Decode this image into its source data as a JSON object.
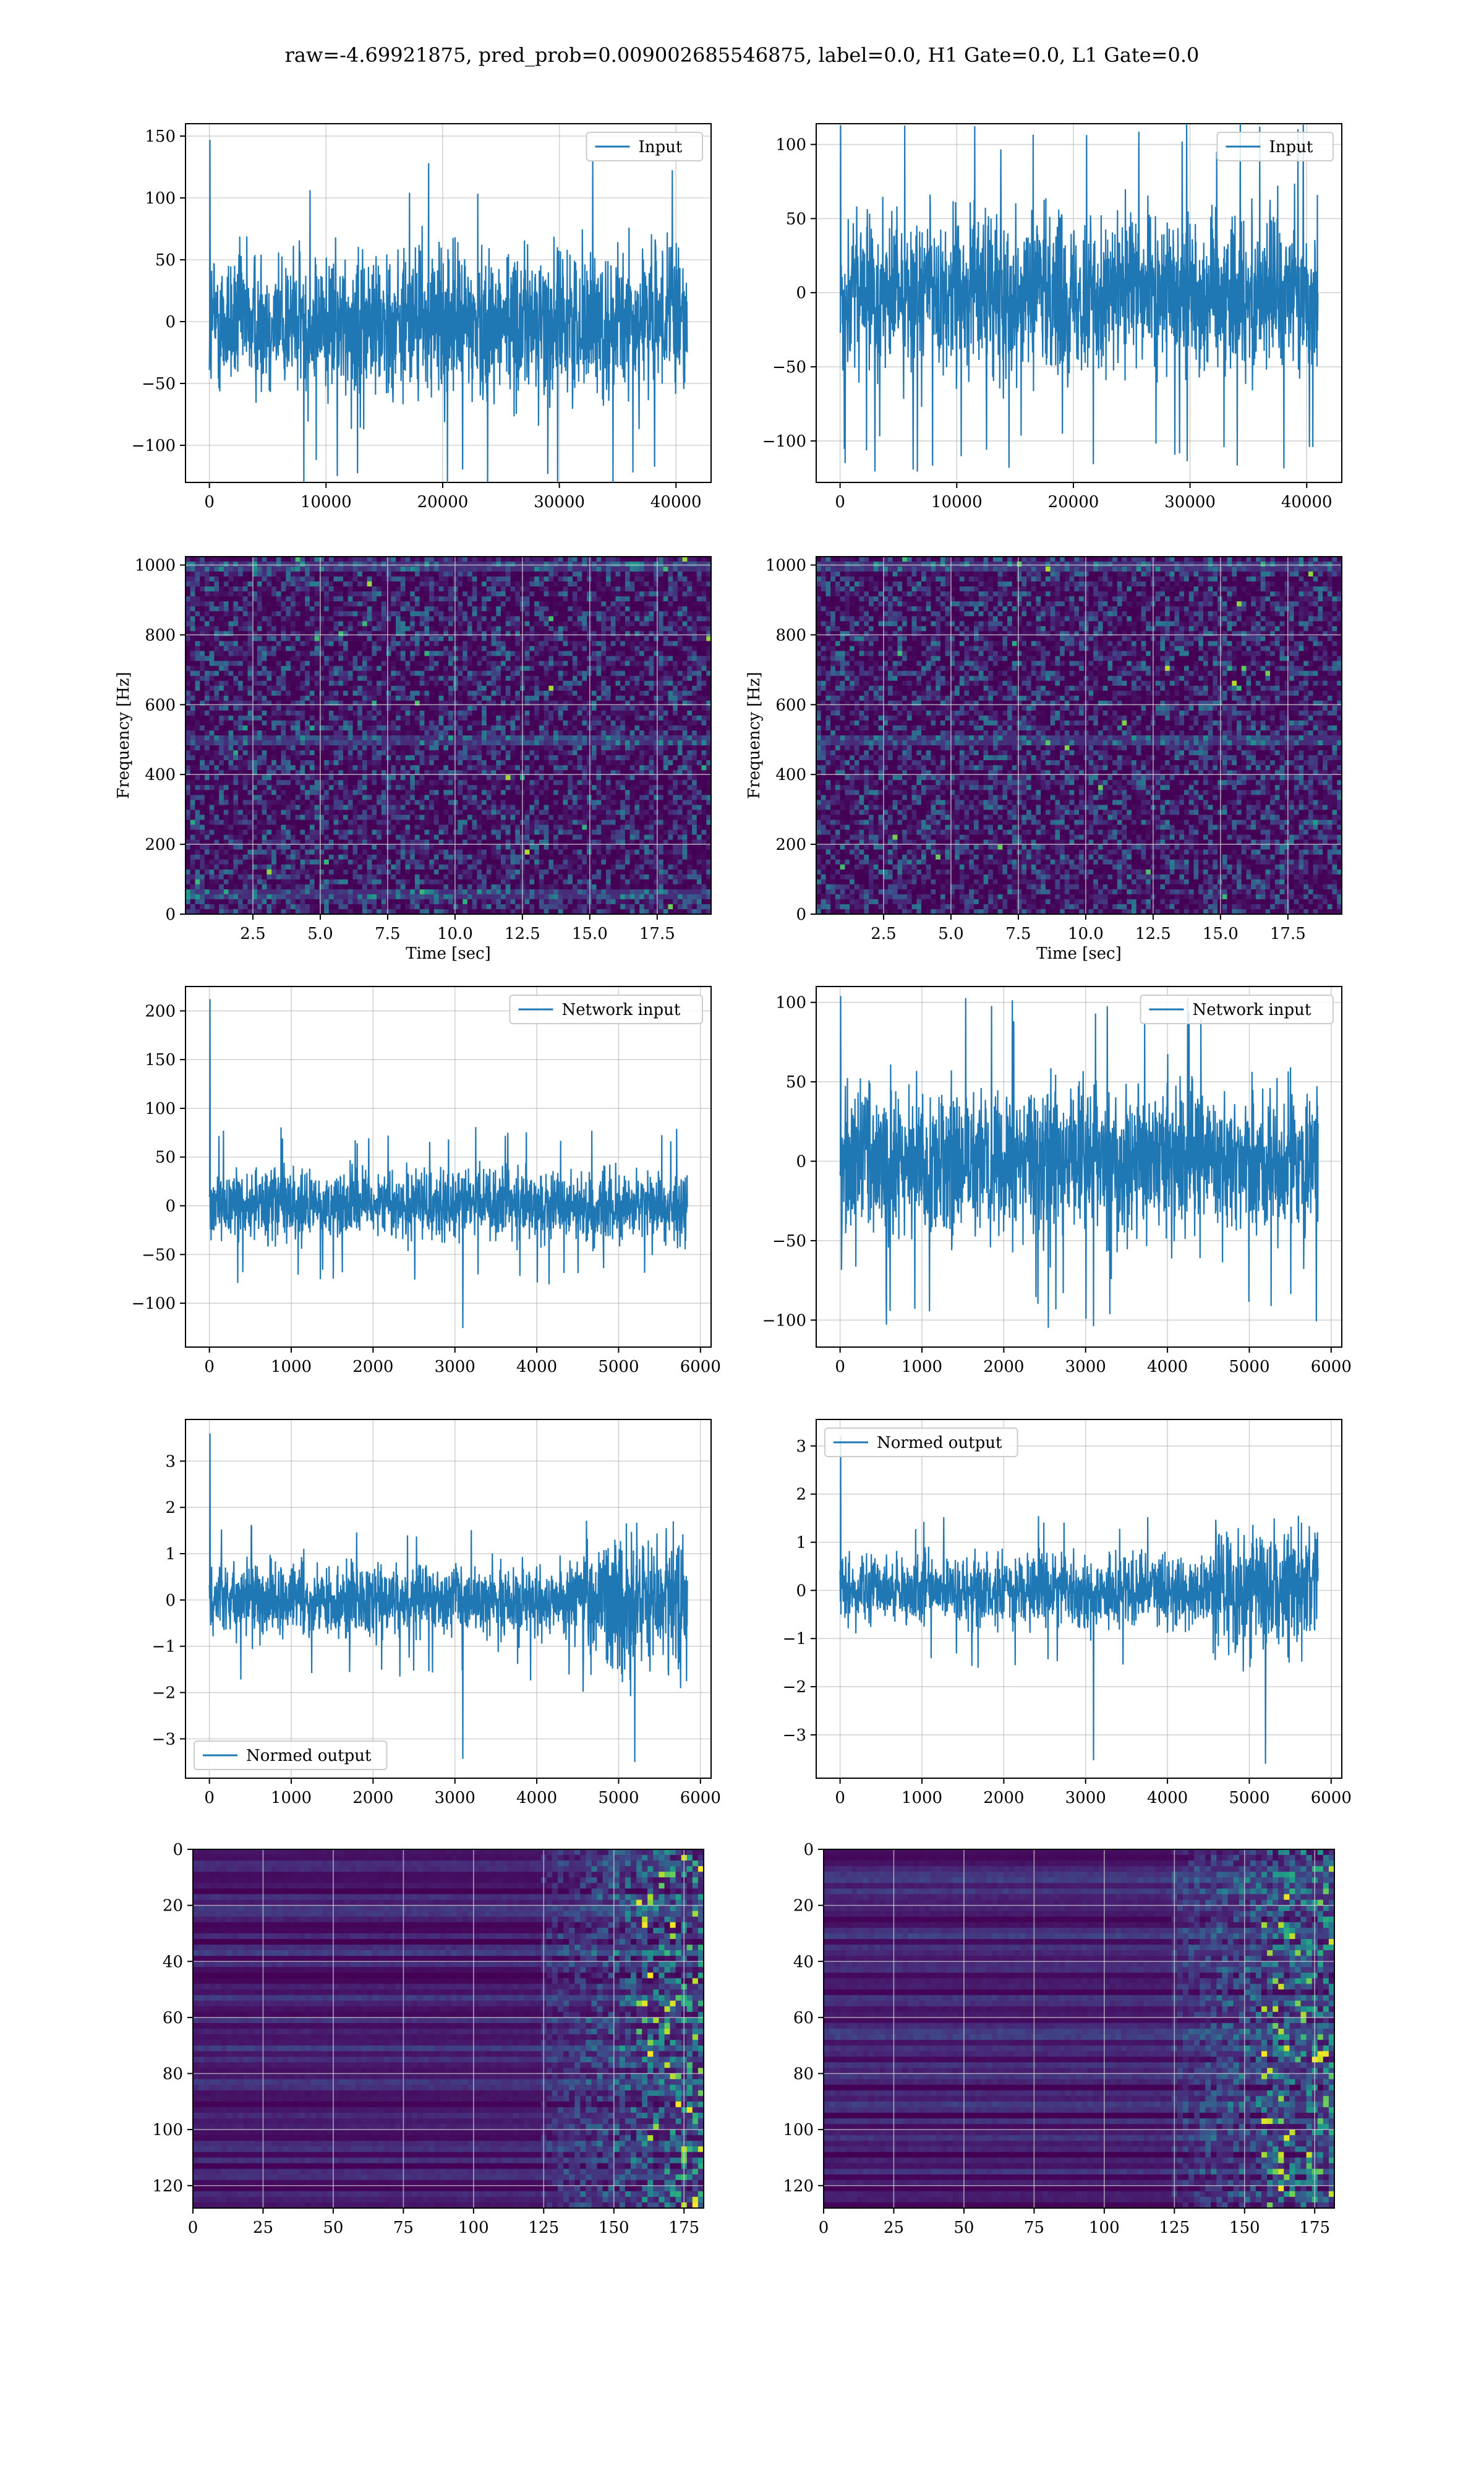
{
  "suptitle": "raw=-4.69921875, pred_prob=0.009002685546875, label=0.0, H1 Gate=0.0, L1 Gate=0.0",
  "colors": {
    "line": "#1f77b4",
    "grid": "#b0b0b0",
    "axis": "#000000",
    "viridis": [
      "#440154",
      "#482878",
      "#3e4a89",
      "#31688e",
      "#26828e",
      "#1f9e89",
      "#35b779",
      "#6ece58",
      "#b5de2b",
      "#fde725"
    ]
  },
  "chart_data": [
    {
      "id": "h1-input",
      "type": "line",
      "legend": "Input",
      "legend_loc": "upper right",
      "grid": true,
      "xlim": [
        -2048,
        43008
      ],
      "ylim": [
        -130,
        160
      ],
      "xticks": [
        0,
        10000,
        20000,
        30000,
        40000
      ],
      "xticklabels": [
        "0",
        "10000",
        "20000",
        "30000",
        "40000"
      ],
      "yticks": [
        -100,
        -50,
        0,
        50,
        100,
        150
      ],
      "yticklabels": [
        "−100",
        "−50",
        "0",
        "50",
        "100",
        "150"
      ],
      "x_range": [
        0,
        40960
      ],
      "envelope": [
        -98,
        98
      ],
      "extremes": [
        -122,
        147
      ],
      "trend": null
    },
    {
      "id": "l1-input",
      "type": "line",
      "legend": "Input",
      "legend_loc": "upper right",
      "grid": true,
      "xlim": [
        -2048,
        43008
      ],
      "ylim": [
        -128,
        114
      ],
      "xticks": [
        0,
        10000,
        20000,
        30000,
        40000
      ],
      "xticklabels": [
        "0",
        "10000",
        "20000",
        "30000",
        "40000"
      ],
      "yticks": [
        -100,
        -50,
        0,
        50,
        100
      ],
      "yticklabels": [
        "−100",
        "−50",
        "0",
        "50",
        "100"
      ],
      "x_range": [
        0,
        40960
      ],
      "envelope": [
        -90,
        90
      ],
      "extremes": [
        -118,
        113
      ],
      "trend": null
    },
    {
      "id": "h1-spectrogram",
      "type": "heatmap",
      "grid": true,
      "xlabel": "Time [sec]",
      "ylabel": "Frequency [Hz]",
      "xlim": [
        0,
        19.5
      ],
      "ylim": [
        0,
        1024
      ],
      "xticks": [
        2.5,
        5.0,
        7.5,
        10.0,
        12.5,
        15.0,
        17.5
      ],
      "xticklabels": [
        "2.5",
        "5.0",
        "7.5",
        "10.0",
        "12.5",
        "15.0",
        "17.5"
      ],
      "yticks": [
        0,
        200,
        400,
        600,
        800,
        1000
      ],
      "yticklabels": [
        "0",
        "200",
        "400",
        "600",
        "800",
        "1000"
      ],
      "bright_bands": [
        500,
        1000,
        60
      ]
    },
    {
      "id": "l1-spectrogram",
      "type": "heatmap",
      "grid": true,
      "xlabel": "Time [sec]",
      "ylabel": "Frequency [Hz]",
      "xlim": [
        0,
        19.5
      ],
      "ylim": [
        0,
        1024
      ],
      "xticks": [
        2.5,
        5.0,
        7.5,
        10.0,
        12.5,
        15.0,
        17.5
      ],
      "xticklabels": [
        "2.5",
        "5.0",
        "7.5",
        "10.0",
        "12.5",
        "15.0",
        "17.5"
      ],
      "yticks": [
        0,
        200,
        400,
        600,
        800,
        1000
      ],
      "yticklabels": [
        "0",
        "200",
        "400",
        "600",
        "800",
        "1000"
      ],
      "bright_bands": [
        500,
        1000
      ]
    },
    {
      "id": "h1-network-input",
      "type": "line",
      "legend": "Network input",
      "legend_loc": "upper right",
      "grid": true,
      "xlim": [
        -292,
        6130
      ],
      "ylim": [
        -145,
        225
      ],
      "xticks": [
        0,
        1000,
        2000,
        3000,
        4000,
        5000,
        6000
      ],
      "xticklabels": [
        "0",
        "1000",
        "2000",
        "3000",
        "4000",
        "5000",
        "6000"
      ],
      "yticks": [
        -100,
        -50,
        0,
        50,
        100,
        150,
        200
      ],
      "yticklabels": [
        "−100",
        "−50",
        "0",
        "50",
        "100",
        "150",
        "200"
      ],
      "x_range": [
        0,
        5840
      ],
      "envelope": [
        -60,
        60
      ],
      "extremes": [
        -128,
        212
      ],
      "trend": null
    },
    {
      "id": "l1-network-input",
      "type": "line",
      "legend": "Network input",
      "legend_loc": "upper right",
      "grid": true,
      "xlim": [
        -292,
        6130
      ],
      "ylim": [
        -117,
        110
      ],
      "xticks": [
        0,
        1000,
        2000,
        3000,
        4000,
        5000,
        6000
      ],
      "xticklabels": [
        "0",
        "1000",
        "2000",
        "3000",
        "4000",
        "5000",
        "6000"
      ],
      "yticks": [
        -100,
        -50,
        0,
        50,
        100
      ],
      "yticklabels": [
        "−100",
        "−50",
        "0",
        "50",
        "100"
      ],
      "x_range": [
        0,
        5840
      ],
      "envelope": [
        -78,
        78
      ],
      "extremes": [
        -106,
        104
      ],
      "trend": null
    },
    {
      "id": "h1-normed-output",
      "type": "line",
      "legend": "Normed output",
      "legend_loc": "lower left",
      "grid": true,
      "xlim": [
        -292,
        6130
      ],
      "ylim": [
        -3.85,
        3.9
      ],
      "xticks": [
        0,
        1000,
        2000,
        3000,
        4000,
        5000,
        6000
      ],
      "xticklabels": [
        "0",
        "1000",
        "2000",
        "3000",
        "4000",
        "5000",
        "6000"
      ],
      "yticks": [
        -3,
        -2,
        -1,
        0,
        1,
        2,
        3
      ],
      "yticklabels": [
        "−3",
        "−2",
        "−1",
        "0",
        "1",
        "2",
        "3"
      ],
      "x_range": [
        0,
        5840
      ],
      "envelope": [
        -1.3,
        1.3
      ],
      "extremes": [
        -3.5,
        3.6
      ],
      "trend": "rise-end"
    },
    {
      "id": "l1-normed-output",
      "type": "line",
      "legend": "Normed output",
      "legend_loc": "upper left",
      "grid": true,
      "xlim": [
        -292,
        6130
      ],
      "ylim": [
        -3.9,
        3.55
      ],
      "xticks": [
        0,
        1000,
        2000,
        3000,
        4000,
        5000,
        6000
      ],
      "xticklabels": [
        "0",
        "1000",
        "2000",
        "3000",
        "4000",
        "5000",
        "6000"
      ],
      "yticks": [
        -3,
        -2,
        -1,
        0,
        1,
        2,
        3
      ],
      "yticklabels": [
        "−3",
        "−2",
        "−1",
        "0",
        "1",
        "2",
        "3"
      ],
      "x_range": [
        0,
        5840
      ],
      "envelope": [
        -1.2,
        1.2
      ],
      "extremes": [
        -3.6,
        3.2
      ],
      "trend": "rise-end"
    },
    {
      "id": "h1-feature-map",
      "type": "heatmap",
      "grid": true,
      "xlim": [
        0,
        182
      ],
      "ylim": [
        128,
        0
      ],
      "xticks": [
        0,
        25,
        50,
        75,
        100,
        125,
        150,
        175
      ],
      "xticklabels": [
        "0",
        "25",
        "50",
        "75",
        "100",
        "125",
        "150",
        "175"
      ],
      "yticks": [
        0,
        20,
        40,
        60,
        80,
        100,
        120
      ],
      "yticklabels": [
        "0",
        "20",
        "40",
        "60",
        "80",
        "100",
        "120"
      ]
    },
    {
      "id": "l1-feature-map",
      "type": "heatmap",
      "grid": true,
      "xlim": [
        0,
        182
      ],
      "ylim": [
        128,
        0
      ],
      "xticks": [
        0,
        25,
        50,
        75,
        100,
        125,
        150,
        175
      ],
      "xticklabels": [
        "0",
        "25",
        "50",
        "75",
        "100",
        "125",
        "150",
        "175"
      ],
      "yticks": [
        0,
        20,
        40,
        60,
        80,
        100,
        120
      ],
      "yticklabels": [
        "0",
        "20",
        "40",
        "60",
        "80",
        "100",
        "120"
      ]
    }
  ]
}
